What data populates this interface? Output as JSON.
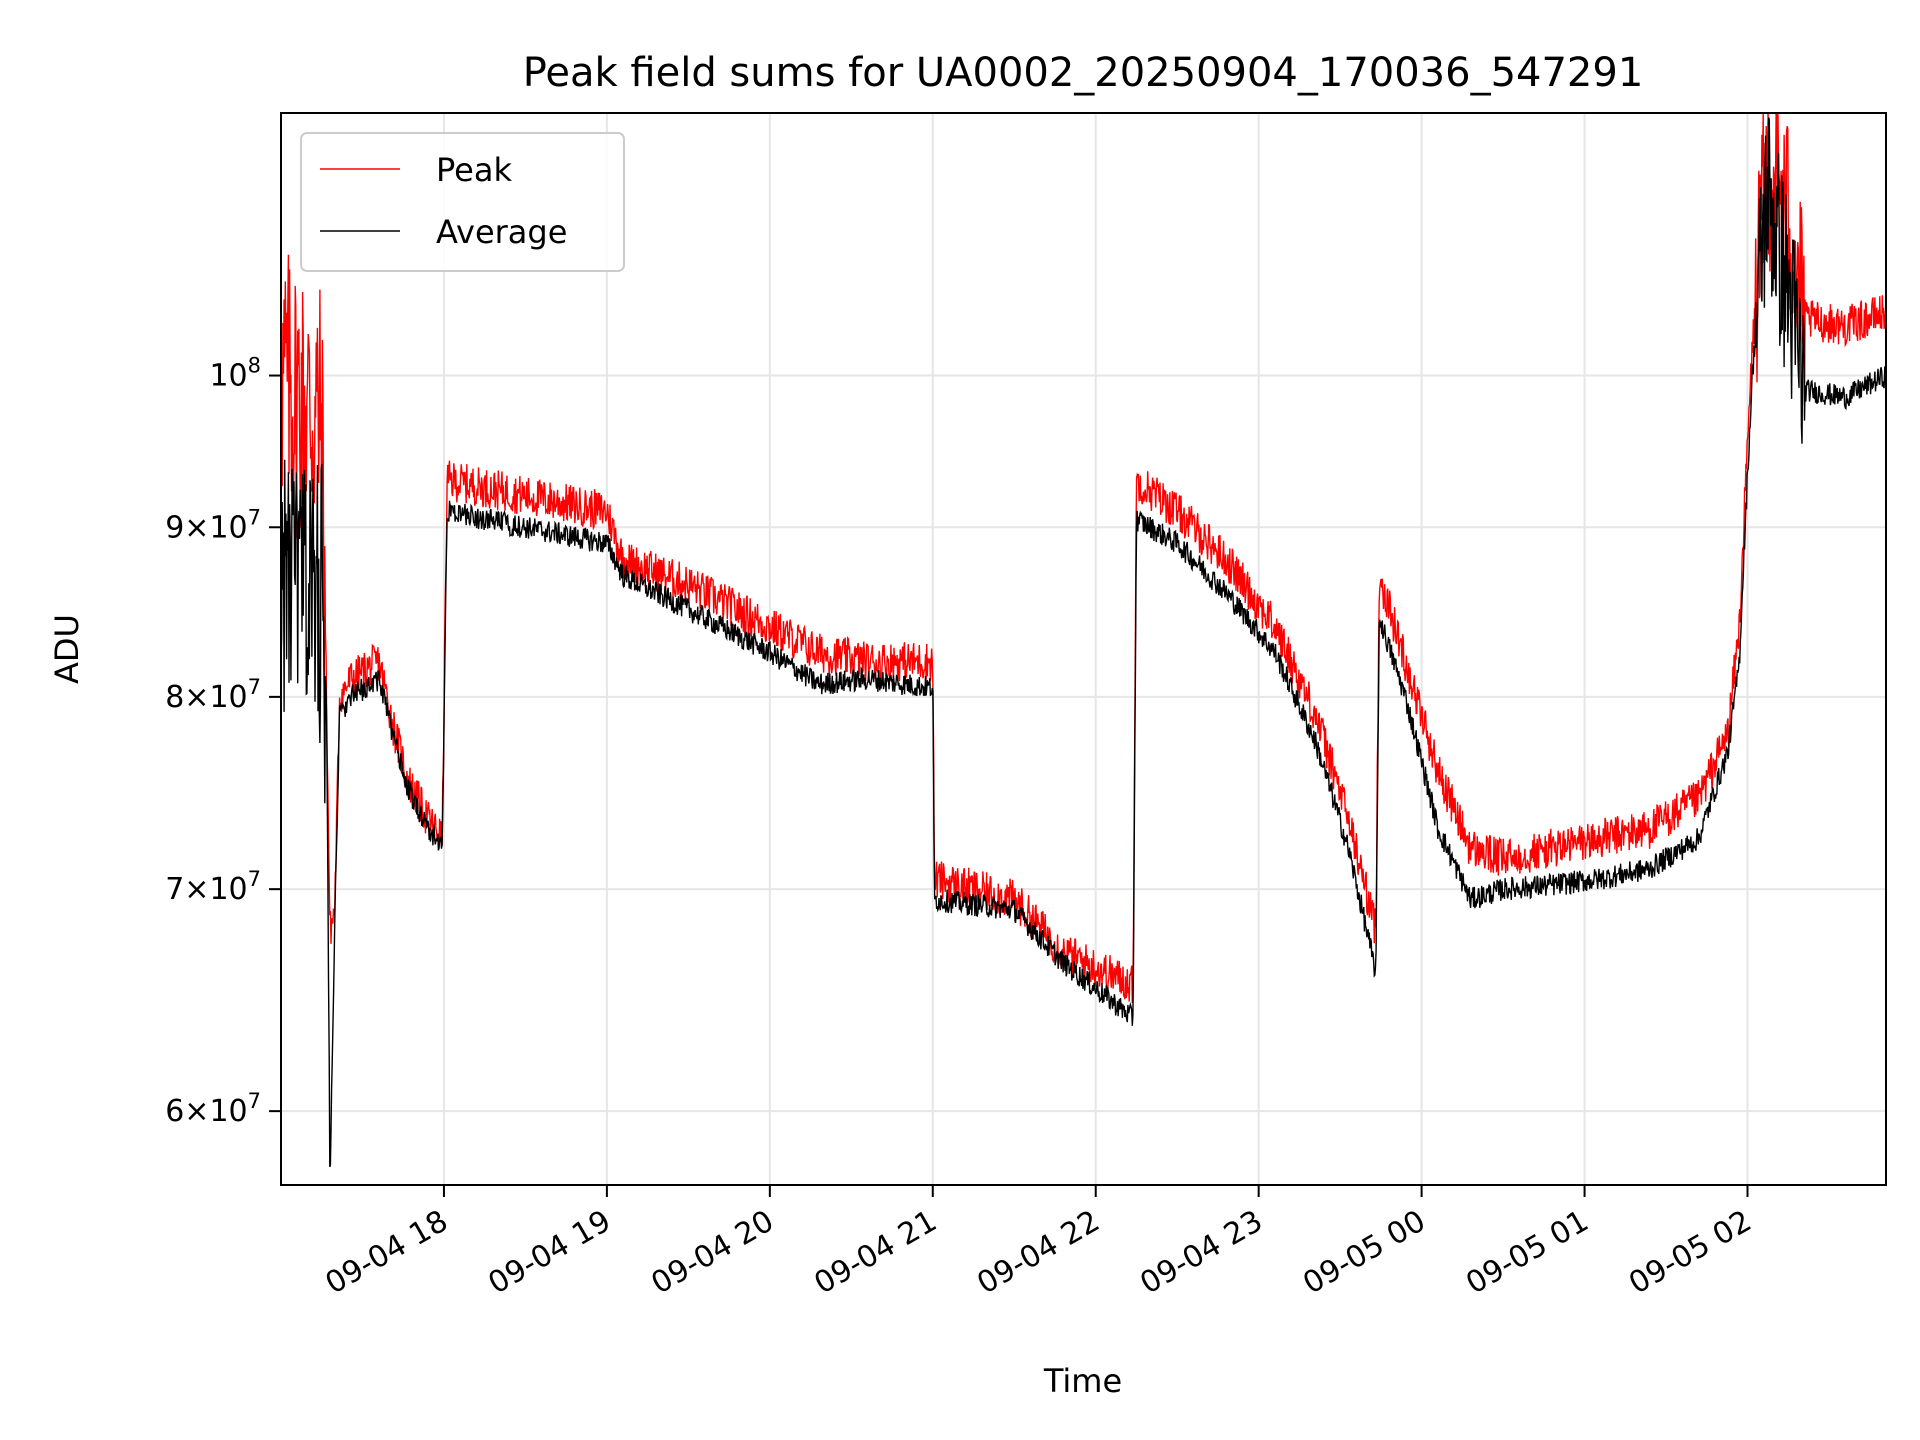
{
  "chart_data": {
    "type": "line",
    "title": "Peak field sums for UA0002_20250904_170036_547291",
    "xlabel": "Time",
    "ylabel": "ADU",
    "yscale": "log",
    "ylim": [
      57000000,
      120000000
    ],
    "xlim_hours": [
      17.0,
      26.85
    ],
    "grid": true,
    "legend_position": "top-left",
    "x_tick_labels": [
      {
        "h": 18,
        "label": "09-04 18"
      },
      {
        "h": 19,
        "label": "09-04 19"
      },
      {
        "h": 20,
        "label": "09-04 20"
      },
      {
        "h": 21,
        "label": "09-04 21"
      },
      {
        "h": 22,
        "label": "09-04 22"
      },
      {
        "h": 23,
        "label": "09-04 23"
      },
      {
        "h": 24,
        "label": "09-05 00"
      },
      {
        "h": 25,
        "label": "09-05 01"
      },
      {
        "h": 26,
        "label": "09-05 02"
      }
    ],
    "y_tick_labels": [
      {
        "v": 60000000,
        "mant": "6",
        "exp": "7"
      },
      {
        "v": 70000000,
        "mant": "7",
        "exp": "7"
      },
      {
        "v": 80000000,
        "mant": "8",
        "exp": "7"
      },
      {
        "v": 90000000,
        "mant": "9",
        "exp": "7"
      },
      {
        "v": 100000000,
        "mant": "",
        "exp": "8"
      }
    ],
    "series": [
      {
        "name": "Peak",
        "color": "#ff0000",
        "noise": 0.014,
        "points": [
          [
            17.0,
            100000000
          ],
          [
            17.25,
            97000000
          ],
          [
            17.28,
            79500000
          ],
          [
            17.3,
            68000000
          ],
          [
            17.33,
            69000000
          ],
          [
            17.36,
            80000000
          ],
          [
            17.43,
            81000000
          ],
          [
            17.6,
            82000000
          ],
          [
            17.7,
            78000000
          ],
          [
            17.78,
            75500000
          ],
          [
            17.9,
            73500000
          ],
          [
            17.99,
            72500000
          ],
          [
            18.02,
            93000000
          ],
          [
            18.5,
            92000000
          ],
          [
            19.0,
            91000000
          ],
          [
            19.1,
            88000000
          ],
          [
            19.5,
            86500000
          ],
          [
            20.0,
            84000000
          ],
          [
            20.3,
            82500000
          ],
          [
            20.6,
            82000000
          ],
          [
            21.0,
            82000000
          ],
          [
            21.01,
            70500000
          ],
          [
            21.5,
            69500000
          ],
          [
            21.8,
            67000000
          ],
          [
            22.23,
            65500000
          ],
          [
            22.25,
            93000000
          ],
          [
            22.5,
            91000000
          ],
          [
            22.8,
            88000000
          ],
          [
            23.1,
            84000000
          ],
          [
            23.35,
            79000000
          ],
          [
            23.55,
            73500000
          ],
          [
            23.72,
            68000000
          ],
          [
            23.74,
            87000000
          ],
          [
            23.9,
            82000000
          ],
          [
            24.1,
            76000000
          ],
          [
            24.3,
            72000000
          ],
          [
            24.5,
            71500000
          ],
          [
            24.8,
            72000000
          ],
          [
            25.1,
            72500000
          ],
          [
            25.4,
            73000000
          ],
          [
            25.7,
            74500000
          ],
          [
            25.88,
            78000000
          ],
          [
            25.95,
            84000000
          ],
          [
            26.03,
            102000000
          ],
          [
            26.12,
            116000000
          ],
          [
            26.25,
            112000000
          ],
          [
            26.35,
            104000000
          ],
          [
            26.6,
            103500000
          ],
          [
            26.85,
            104500000
          ]
        ]
      },
      {
        "name": "Average",
        "color": "#000000",
        "noise": 0.008,
        "points": [
          [
            17.0,
            87000000
          ],
          [
            17.25,
            86000000
          ],
          [
            17.28,
            79000000
          ],
          [
            17.3,
            57000000
          ],
          [
            17.33,
            68500000
          ],
          [
            17.36,
            79000000
          ],
          [
            17.43,
            80000000
          ],
          [
            17.6,
            81000000
          ],
          [
            17.7,
            77500000
          ],
          [
            17.78,
            75000000
          ],
          [
            17.9,
            73000000
          ],
          [
            17.99,
            72200000
          ],
          [
            18.02,
            91000000
          ],
          [
            18.5,
            90000000
          ],
          [
            19.0,
            89000000
          ],
          [
            19.1,
            87000000
          ],
          [
            19.5,
            85000000
          ],
          [
            20.0,
            82500000
          ],
          [
            20.3,
            80700000
          ],
          [
            20.6,
            81000000
          ],
          [
            21.0,
            80500000
          ],
          [
            21.01,
            69500000
          ],
          [
            21.5,
            69000000
          ],
          [
            21.8,
            66500000
          ],
          [
            22.23,
            64000000
          ],
          [
            22.25,
            90500000
          ],
          [
            22.5,
            89000000
          ],
          [
            22.8,
            86000000
          ],
          [
            23.1,
            82500000
          ],
          [
            23.35,
            77500000
          ],
          [
            23.55,
            72000000
          ],
          [
            23.72,
            66000000
          ],
          [
            23.74,
            84500000
          ],
          [
            23.9,
            80000000
          ],
          [
            24.1,
            73000000
          ],
          [
            24.3,
            69500000
          ],
          [
            24.5,
            70000000
          ],
          [
            24.8,
            70200000
          ],
          [
            25.1,
            70500000
          ],
          [
            25.4,
            71000000
          ],
          [
            25.7,
            72500000
          ],
          [
            25.88,
            77000000
          ],
          [
            25.95,
            82000000
          ],
          [
            26.03,
            100000000
          ],
          [
            26.12,
            114000000
          ],
          [
            26.25,
            106000000
          ],
          [
            26.35,
            99000000
          ],
          [
            26.6,
            98500000
          ],
          [
            26.85,
            100000000
          ]
        ]
      }
    ]
  }
}
